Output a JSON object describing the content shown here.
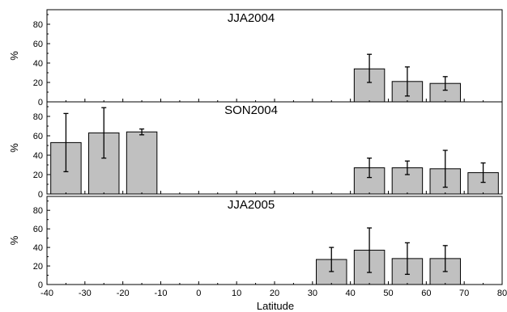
{
  "chart_data": {
    "type": "bar",
    "xlabel": "Latitude",
    "xlim": [
      -40,
      80
    ],
    "xticks": [
      -40,
      -30,
      -20,
      -10,
      0,
      10,
      20,
      30,
      40,
      50,
      60,
      70,
      80
    ],
    "bar_width": 8,
    "bar_color": "#c0c0c0",
    "grid": false,
    "panels": [
      {
        "title": "JJA2004",
        "ylabel": "%",
        "ylim": [
          0,
          95
        ],
        "yticks": [
          0,
          20,
          40,
          60,
          80
        ],
        "bars": [
          {
            "x": 45,
            "value": 34,
            "err_low": 20,
            "err_high": 49
          },
          {
            "x": 55,
            "value": 21,
            "err_low": 6,
            "err_high": 36
          },
          {
            "x": 65,
            "value": 19,
            "err_low": 12,
            "err_high": 26
          }
        ]
      },
      {
        "title": "SON2004",
        "ylabel": "%",
        "ylim": [
          0,
          95
        ],
        "yticks": [
          0,
          20,
          40,
          60,
          80
        ],
        "bars": [
          {
            "x": -35,
            "value": 53,
            "err_low": 23,
            "err_high": 83
          },
          {
            "x": -25,
            "value": 63,
            "err_low": 37,
            "err_high": 89
          },
          {
            "x": -15,
            "value": 64,
            "err_low": 61,
            "err_high": 67
          },
          {
            "x": 45,
            "value": 27,
            "err_low": 17,
            "err_high": 37
          },
          {
            "x": 55,
            "value": 27,
            "err_low": 20,
            "err_high": 34
          },
          {
            "x": 65,
            "value": 26,
            "err_low": 7,
            "err_high": 45
          },
          {
            "x": 75,
            "value": 22,
            "err_low": 12,
            "err_high": 32
          }
        ]
      },
      {
        "title": "JJA2005",
        "ylabel": "%",
        "ylim": [
          0,
          95
        ],
        "yticks": [
          0,
          20,
          40,
          60,
          80
        ],
        "bars": [
          {
            "x": 35,
            "value": 27,
            "err_low": 14,
            "err_high": 40
          },
          {
            "x": 45,
            "value": 37,
            "err_low": 13,
            "err_high": 61
          },
          {
            "x": 55,
            "value": 28,
            "err_low": 11,
            "err_high": 45
          },
          {
            "x": 65,
            "value": 28,
            "err_low": 14,
            "err_high": 42
          }
        ]
      }
    ]
  }
}
